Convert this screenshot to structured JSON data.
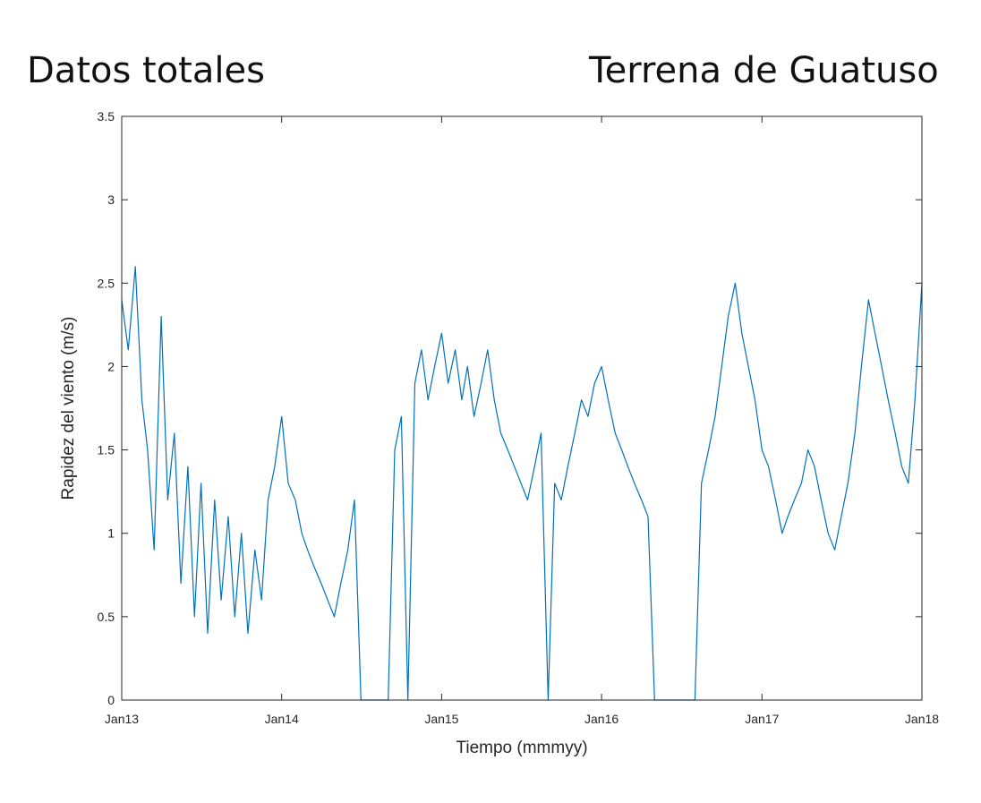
{
  "header": {
    "left_title": "Datos totales",
    "right_title": "Terrena de Guatuso"
  },
  "chart_data": {
    "type": "line",
    "xlabel": "Tiempo (mmmyy)",
    "ylabel": "Rapidez del viento (m/s)",
    "ylim": [
      0,
      3.5
    ],
    "yticks": [
      0,
      0.5,
      1,
      1.5,
      2,
      2.5,
      3,
      3.5
    ],
    "ytick_labels": [
      "0",
      "0.5",
      "1",
      "1.5",
      "2",
      "2.5",
      "3",
      "3.5"
    ],
    "xlim": [
      "2013-01-01",
      "2018-01-01"
    ],
    "xticks": [
      "2013-01-01",
      "2014-01-01",
      "2015-01-01",
      "2016-01-01",
      "2017-01-01",
      "2018-01-01"
    ],
    "xtick_labels": [
      "Jan13",
      "Jan14",
      "Jan15",
      "Jan16",
      "Jan17",
      "Jan18"
    ],
    "grid": false,
    "line_color": "#0072BD",
    "series": [
      {
        "x": [
          "2013-01-01",
          "2013-01-16",
          "2013-02-01",
          "2013-02-16",
          "2013-03-01",
          "2013-03-16",
          "2013-04-01",
          "2013-04-16",
          "2013-05-01",
          "2013-05-16",
          "2013-06-01",
          "2013-06-16",
          "2013-07-01",
          "2013-07-16",
          "2013-08-01",
          "2013-08-16",
          "2013-09-01",
          "2013-09-16",
          "2013-10-01",
          "2013-10-16",
          "2013-11-01",
          "2013-11-16",
          "2013-12-01",
          "2013-12-16",
          "2014-01-01",
          "2014-01-16",
          "2014-02-01",
          "2014-02-16",
          "2014-03-01",
          "2014-03-16",
          "2014-04-01",
          "2014-04-16",
          "2014-05-01",
          "2014-05-16",
          "2014-06-01",
          "2014-06-16",
          "2014-07-01",
          "2014-07-16",
          "2014-08-01",
          "2014-08-16",
          "2014-09-01",
          "2014-09-16",
          "2014-10-01",
          "2014-10-16",
          "2014-11-01",
          "2014-11-16",
          "2014-12-01",
          "2014-12-16",
          "2015-01-01",
          "2015-01-16",
          "2015-02-01",
          "2015-02-16",
          "2015-03-01",
          "2015-03-16",
          "2015-04-01",
          "2015-04-16",
          "2015-05-01",
          "2015-05-16",
          "2015-06-01",
          "2015-06-16",
          "2015-07-01",
          "2015-07-16",
          "2015-08-01",
          "2015-08-16",
          "2015-09-01",
          "2015-09-16",
          "2015-10-01",
          "2015-10-16",
          "2015-11-01",
          "2015-11-16",
          "2015-12-01",
          "2015-12-16",
          "2016-01-01",
          "2016-01-16",
          "2016-02-01",
          "2016-02-16",
          "2016-03-01",
          "2016-03-16",
          "2016-04-01",
          "2016-04-16",
          "2016-05-01",
          "2016-05-16",
          "2016-06-01",
          "2016-06-16",
          "2016-07-01",
          "2016-07-16",
          "2016-08-01",
          "2016-08-16",
          "2016-09-01",
          "2016-09-16",
          "2016-10-01",
          "2016-10-16",
          "2016-11-01",
          "2016-11-16",
          "2016-12-01",
          "2016-12-16",
          "2017-01-01",
          "2017-01-16",
          "2017-02-01",
          "2017-02-16",
          "2017-03-01",
          "2017-03-16",
          "2017-04-01",
          "2017-04-16",
          "2017-05-01",
          "2017-05-16",
          "2017-06-01",
          "2017-06-16",
          "2017-07-01",
          "2017-07-16",
          "2017-08-01",
          "2017-08-16",
          "2017-09-01",
          "2017-09-16",
          "2017-10-01",
          "2017-10-16",
          "2017-11-01",
          "2017-11-16",
          "2017-12-01",
          "2017-12-16",
          "2018-01-01"
        ],
        "y": [
          2.4,
          2.1,
          2.6,
          1.8,
          1.5,
          0.9,
          2.3,
          1.2,
          1.6,
          0.7,
          1.4,
          0.5,
          1.3,
          0.4,
          1.2,
          0.6,
          1.1,
          0.5,
          1.0,
          0.4,
          0.9,
          0.6,
          1.2,
          1.4,
          1.7,
          1.3,
          1.2,
          1.0,
          0.9,
          0.8,
          0.7,
          0.6,
          0.5,
          0.7,
          0.9,
          1.2,
          0.0,
          0.0,
          0.0,
          0.0,
          0.0,
          1.5,
          1.7,
          0.0,
          1.9,
          2.1,
          1.8,
          2.0,
          2.2,
          1.9,
          2.1,
          1.8,
          2.0,
          1.7,
          1.9,
          2.1,
          1.8,
          1.6,
          1.5,
          1.4,
          1.3,
          1.2,
          1.4,
          1.6,
          0.0,
          1.3,
          1.2,
          1.4,
          1.6,
          1.8,
          1.7,
          1.9,
          2.0,
          1.8,
          1.6,
          1.5,
          1.4,
          1.3,
          1.2,
          1.1,
          0.0,
          0.0,
          0.0,
          0.0,
          0.0,
          0.0,
          0.0,
          1.3,
          1.5,
          1.7,
          2.0,
          2.3,
          2.5,
          2.2,
          2.0,
          1.8,
          1.5,
          1.4,
          1.2,
          1.0,
          1.1,
          1.2,
          1.3,
          1.5,
          1.4,
          1.2,
          1.0,
          0.9,
          1.1,
          1.3,
          1.6,
          2.0,
          2.4,
          2.2,
          2.0,
          1.8,
          1.6,
          1.4,
          1.3,
          1.8,
          2.5
        ]
      }
    ]
  }
}
